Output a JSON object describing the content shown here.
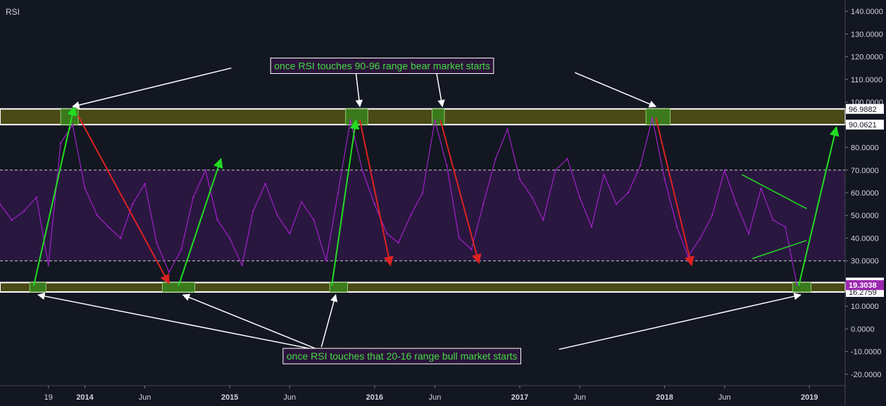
{
  "indicator_title": "RSI",
  "colors": {
    "background": "#131722",
    "rsi_line": "#a020c8",
    "band_fill": "#2a1740",
    "zone_fill": "#4a4a16",
    "touch_fill": "#3a7a1c",
    "up_arrow": "#22dd22",
    "down_arrow": "#dd2222",
    "white": "#ffffff",
    "label_text": "#d1d4dc",
    "annotation_text": "#44dd44",
    "current_label_bg": "#9c27b0"
  },
  "chart_data": {
    "type": "line",
    "title": "RSI",
    "ylim": [
      -25,
      145
    ],
    "xlim": [
      "2013-06-01",
      "2019-04-01"
    ],
    "y_ticks": [
      "140.0000",
      "130.0000",
      "120.0000",
      "110.0000",
      "100.0000",
      "80.0000",
      "70.0000",
      "60.0000",
      "50.0000",
      "40.0000",
      "30.0000",
      "10.0000",
      "0.0000",
      "-10.0000",
      "-20.0000"
    ],
    "y_tick_values": [
      140,
      130,
      120,
      110,
      100,
      80,
      70,
      60,
      50,
      40,
      30,
      10,
      0,
      -10,
      -20
    ],
    "x_ticks": [
      {
        "label": "19",
        "date": "2013-10-01"
      },
      {
        "label": "2014",
        "date": "2014-01-01"
      },
      {
        "label": "Jun",
        "date": "2014-06-01"
      },
      {
        "label": "2015",
        "date": "2015-01-01"
      },
      {
        "label": "Jun",
        "date": "2015-06-01"
      },
      {
        "label": "2016",
        "date": "2016-01-01"
      },
      {
        "label": "Jun",
        "date": "2016-06-01"
      },
      {
        "label": "2017",
        "date": "2017-01-01"
      },
      {
        "label": "Jun",
        "date": "2017-06-01"
      },
      {
        "label": "2018",
        "date": "2018-01-01"
      },
      {
        "label": "Jun",
        "date": "2018-06-01"
      },
      {
        "label": "2019",
        "date": "2019-01-01"
      }
    ],
    "series": [
      {
        "key": "rsi",
        "x": [
          "2013-06-01",
          "2013-07-01",
          "2013-08-01",
          "2013-09-01",
          "2013-10-01",
          "2013-11-01",
          "2013-12-01",
          "2014-01-01",
          "2014-02-01",
          "2014-03-01",
          "2014-04-01",
          "2014-05-01",
          "2014-06-01",
          "2014-07-01",
          "2014-08-01",
          "2014-09-01",
          "2014-10-01",
          "2014-11-01",
          "2014-12-01",
          "2015-01-01",
          "2015-02-01",
          "2015-03-01",
          "2015-04-01",
          "2015-05-01",
          "2015-06-01",
          "2015-07-01",
          "2015-08-01",
          "2015-09-01",
          "2015-10-01",
          "2015-11-01",
          "2015-12-01",
          "2016-01-01",
          "2016-02-01",
          "2016-03-01",
          "2016-04-01",
          "2016-05-01",
          "2016-06-01",
          "2016-07-01",
          "2016-08-01",
          "2016-09-01",
          "2016-10-01",
          "2016-11-01",
          "2016-12-01",
          "2017-01-01",
          "2017-02-01",
          "2017-03-01",
          "2017-04-01",
          "2017-05-01",
          "2017-06-01",
          "2017-07-01",
          "2017-08-01",
          "2017-09-01",
          "2017-10-01",
          "2017-11-01",
          "2017-12-01",
          "2018-01-01",
          "2018-02-01",
          "2018-03-01",
          "2018-04-01",
          "2018-05-01",
          "2018-06-01",
          "2018-07-01",
          "2018-08-01",
          "2018-09-01",
          "2018-10-01",
          "2018-11-01",
          "2018-12-01"
        ],
        "y": [
          55,
          48,
          52,
          58,
          28,
          82,
          90,
          62,
          50,
          45,
          40,
          55,
          64,
          38,
          25,
          35,
          58,
          70,
          48,
          40,
          28,
          52,
          64,
          50,
          42,
          56,
          48,
          30,
          60,
          92,
          70,
          55,
          42,
          38,
          50,
          60,
          92,
          72,
          40,
          35,
          55,
          75,
          88,
          66,
          58,
          48,
          70,
          75,
          58,
          45,
          68,
          55,
          60,
          72,
          93,
          66,
          45,
          32,
          40,
          50,
          70,
          55,
          42,
          62,
          48,
          45,
          19.3
        ]
      }
    ],
    "reference_lines": [
      70,
      30
    ],
    "zones": [
      {
        "name": "bear",
        "low": 90.0621,
        "high": 96.9882
      },
      {
        "name": "bull",
        "low": 16.2759,
        "high": 20.4316
      }
    ],
    "zone_labels": [
      "96.9882",
      "90.0621",
      "20.4316",
      "16.2759"
    ],
    "current_value": "19.3038",
    "touch_markers": [
      {
        "zone": "bear",
        "from": "2013-11-01",
        "to": "2013-12-15"
      },
      {
        "zone": "bear",
        "from": "2015-10-20",
        "to": "2015-12-15"
      },
      {
        "zone": "bear",
        "from": "2016-05-25",
        "to": "2016-06-25"
      },
      {
        "zone": "bear",
        "from": "2017-11-15",
        "to": "2018-01-15"
      },
      {
        "zone": "bull",
        "from": "2013-08-15",
        "to": "2013-09-25"
      },
      {
        "zone": "bull",
        "from": "2014-07-15",
        "to": "2014-10-05"
      },
      {
        "zone": "bull",
        "from": "2015-09-10",
        "to": "2015-10-25"
      },
      {
        "zone": "bull",
        "from": "2018-11-20",
        "to": "2019-01-05"
      }
    ],
    "trend_arrows": [
      {
        "kind": "up",
        "from": [
          "2013-08-25",
          19
        ],
        "to": [
          "2013-12-05",
          98
        ]
      },
      {
        "kind": "down",
        "from": [
          "2013-12-15",
          94
        ],
        "to": [
          "2014-08-01",
          20
        ]
      },
      {
        "kind": "up",
        "from": [
          "2014-08-25",
          19
        ],
        "to": [
          "2014-12-10",
          75
        ]
      },
      {
        "kind": "up",
        "from": [
          "2015-09-15",
          19
        ],
        "to": [
          "2015-11-15",
          92
        ]
      },
      {
        "kind": "down",
        "from": [
          "2015-11-25",
          92
        ],
        "to": [
          "2016-02-10",
          28
        ]
      },
      {
        "kind": "down",
        "from": [
          "2016-06-15",
          92
        ],
        "to": [
          "2016-09-20",
          29
        ]
      },
      {
        "kind": "down",
        "from": [
          "2017-12-10",
          93
        ],
        "to": [
          "2018-03-10",
          28
        ]
      },
      {
        "kind": "up",
        "from": [
          "2018-12-05",
          19
        ],
        "to": [
          "2019-03-10",
          89
        ]
      }
    ],
    "wedge_lines": [
      {
        "from": [
          "2018-07-15",
          68
        ],
        "to": [
          "2018-12-25",
          53
        ]
      },
      {
        "from": [
          "2018-08-10",
          31
        ],
        "to": [
          "2018-12-25",
          39
        ]
      }
    ]
  },
  "annotations": {
    "top": {
      "text": "once RSI touches 90-96 range bear market starts",
      "anchor": [
        "2016-01-20",
        116
      ],
      "pointers": [
        {
          "from": [
            "2015-01-05",
            115
          ],
          "to": [
            "2013-12-01",
            98
          ]
        },
        {
          "from": [
            "2015-11-15",
            113
          ],
          "to": [
            "2015-11-25",
            98
          ]
        },
        {
          "from": [
            "2016-06-05",
            113
          ],
          "to": [
            "2016-06-20",
            98
          ]
        },
        {
          "from": [
            "2017-05-20",
            113
          ],
          "to": [
            "2017-12-10",
            98
          ]
        }
      ]
    },
    "bottom": {
      "text": "once RSI touches that 20-16 range bull market starts",
      "anchor": [
        "2016-03-10",
        -12
      ],
      "pointers": [
        {
          "from": [
            "2015-08-01",
            -9
          ],
          "to": [
            "2013-09-05",
            15
          ]
        },
        {
          "from": [
            "2015-08-10",
            -9
          ],
          "to": [
            "2014-09-05",
            15
          ]
        },
        {
          "from": [
            "2015-08-20",
            -8
          ],
          "to": [
            "2015-09-25",
            15
          ]
        },
        {
          "from": [
            "2017-04-10",
            -9
          ],
          "to": [
            "2018-12-10",
            15
          ]
        }
      ]
    }
  }
}
